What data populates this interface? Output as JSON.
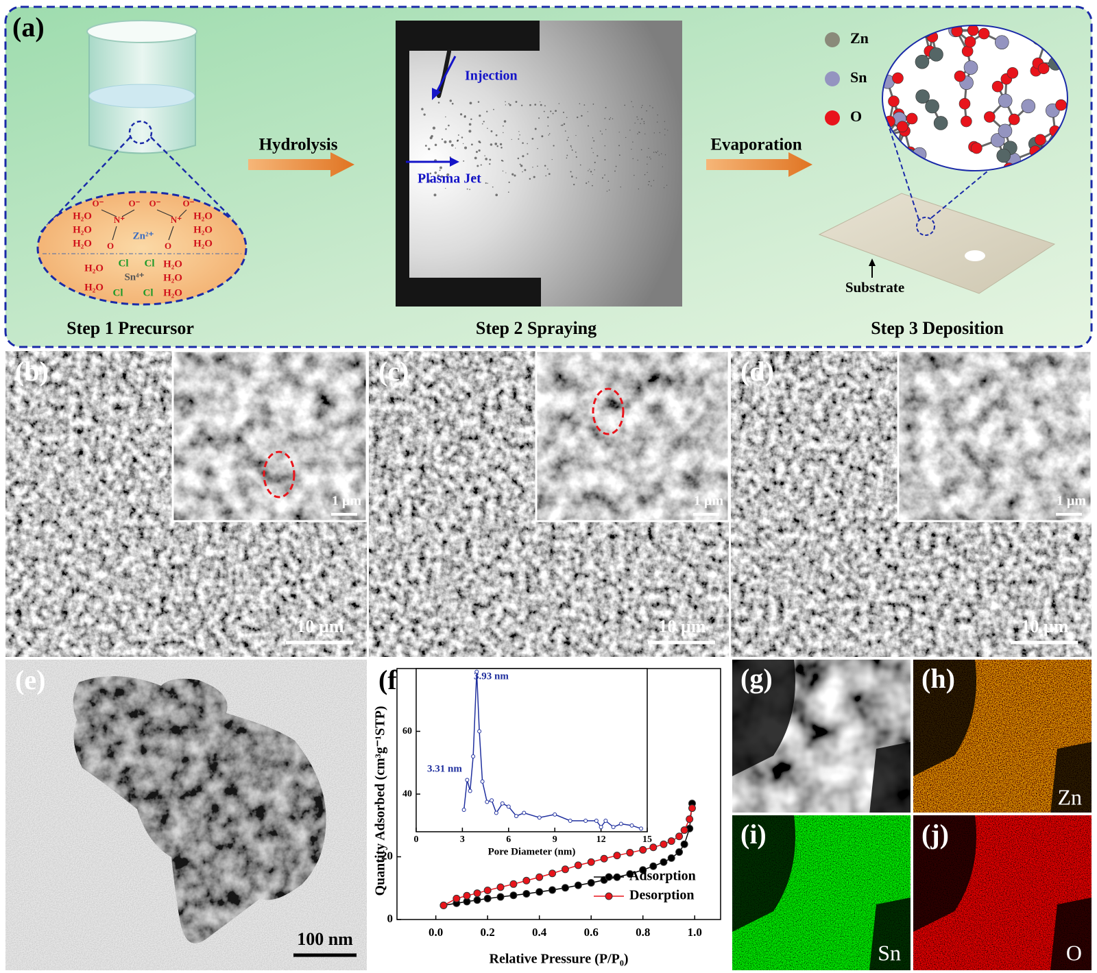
{
  "panel_a": {
    "label": "(a)",
    "step1": {
      "caption": "Step 1 Precursor",
      "water": "H₂O",
      "nitrogen": "N⁺",
      "oxide": "O⁻",
      "oxygen": "O",
      "chlorine": "Cl",
      "zinc_ion": "Zn²⁺",
      "tin_ion": "Sn⁴⁺"
    },
    "hydrolysis": "Hydrolysis",
    "step2": {
      "caption": "Step 2 Spraying",
      "injection": "Injection",
      "plasma_jet": "Plasma Jet"
    },
    "evaporation": "Evaporation",
    "step3": {
      "caption": "Step 3 Deposition",
      "legend": [
        "Zn",
        "Sn",
        "O"
      ],
      "substrate": "Substrate"
    }
  },
  "sem_panels": [
    {
      "label": "(b)",
      "scale_bar": "10 µm",
      "inset_scale_bar": "1 µm"
    },
    {
      "label": "(c)",
      "scale_bar": "10 µm",
      "inset_scale_bar": "1 µm"
    },
    {
      "label": "(d)",
      "scale_bar": "10 µm",
      "inset_scale_bar": "1 µm"
    }
  ],
  "tem_panel": {
    "label": "(e)",
    "scale_bar": "100 nm"
  },
  "chart_panel_label": "(f)",
  "eds_panels": [
    {
      "label": "(g)"
    },
    {
      "label": "(h)",
      "element": "Zn"
    },
    {
      "label": "(i)",
      "element": "Sn"
    },
    {
      "label": "(j)",
      "element": "O"
    }
  ],
  "chart_data": [
    {
      "type": "line",
      "x_label": "Relative Pressure (P/P₀)",
      "y_label": "Quantity Adsorbed (cm³g⁻¹STP)",
      "xlim": [
        -0.15,
        1.1
      ],
      "ylim": [
        0,
        80
      ],
      "xticks": [
        {
          "value": 0,
          "label": "0.0"
        },
        0.2,
        0.4,
        0.6,
        0.8,
        {
          "value": 1,
          "label": "1.0"
        }
      ],
      "yticks": [
        0,
        20
      ],
      "legend": "lower right",
      "series": [
        {
          "name": "Adsorption",
          "color": "#000000",
          "x": [
            0.03,
            0.08,
            0.12,
            0.16,
            0.2,
            0.25,
            0.3,
            0.35,
            0.4,
            0.45,
            0.5,
            0.55,
            0.6,
            0.65,
            0.7,
            0.75,
            0.8,
            0.84,
            0.88,
            0.91,
            0.94,
            0.96,
            0.98,
            0.99
          ],
          "values": [
            4.5,
            5.2,
            5.7,
            6.2,
            6.7,
            7.2,
            7.7,
            8.2,
            8.8,
            9.4,
            10.1,
            10.9,
            11.7,
            12.6,
            13.5,
            14.5,
            15.8,
            17,
            18.3,
            19.6,
            21.5,
            24,
            29,
            37
          ]
        },
        {
          "name": "Desorption",
          "color": "#e8141b",
          "x": [
            0.99,
            0.98,
            0.96,
            0.94,
            0.91,
            0.88,
            0.84,
            0.8,
            0.75,
            0.7,
            0.65,
            0.6,
            0.55,
            0.5,
            0.45,
            0.4,
            0.35,
            0.3,
            0.25,
            0.2,
            0.16,
            0.12,
            0.08,
            0.03
          ],
          "values": [
            35.5,
            32,
            28.5,
            26.5,
            25,
            24,
            23,
            22.2,
            21.3,
            20.4,
            19.4,
            18.3,
            17.3,
            16,
            14.7,
            13.5,
            12.4,
            11.3,
            10.3,
            9.3,
            8.4,
            7.6,
            6.7,
            4.5
          ]
        }
      ]
    },
    {
      "type": "line",
      "x_label": "Pore Diameter (nm)",
      "xlim": [
        0,
        15
      ],
      "ylim": [
        28,
        80
      ],
      "xticks": [
        0,
        3,
        6,
        9,
        12,
        15
      ],
      "yticks": [
        40,
        60
      ],
      "annotations": [
        "3.93 nm",
        "3.31 nm"
      ],
      "series": [
        {
          "color": "#1f2f9e",
          "x": [
            3.1,
            3.31,
            3.5,
            3.7,
            3.93,
            4.1,
            4.3,
            4.6,
            4.9,
            5.2,
            5.6,
            6.0,
            6.5,
            7,
            8,
            9,
            10,
            11,
            11.7,
            12,
            12.3,
            12.8,
            13.3,
            14,
            14.6
          ],
          "values": [
            35,
            44.5,
            41,
            52,
            79,
            60,
            44,
            37.5,
            38,
            34,
            37,
            36,
            33,
            34,
            32.5,
            33.5,
            31.5,
            31.5,
            31.5,
            29.5,
            31.5,
            29.5,
            30.5,
            30,
            29
          ]
        }
      ]
    }
  ]
}
